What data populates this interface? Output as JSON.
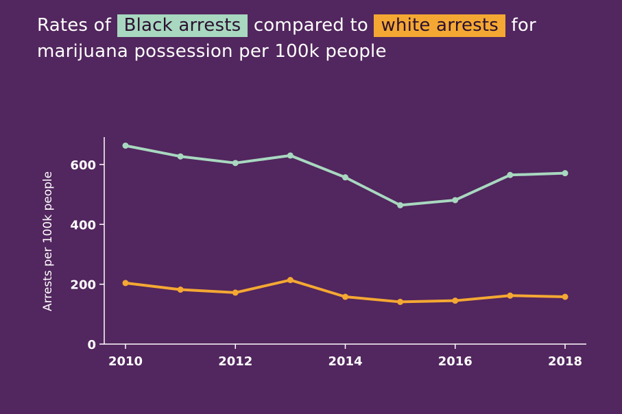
{
  "chart_data": {
    "type": "line",
    "title": {
      "prefix": "Rates of",
      "black_label": "Black arrests",
      "middle": "compared to",
      "white_label": "white arrests",
      "suffix": "for marijuana possession per 100k people"
    },
    "xlabel": "",
    "ylabel": "Arrests per 100k people",
    "x": [
      2010,
      2011,
      2012,
      2013,
      2014,
      2015,
      2016,
      2017,
      2018
    ],
    "x_ticks": [
      "2010",
      "2012",
      "2014",
      "2016",
      "2018"
    ],
    "y_ticks": [
      "0",
      "200",
      "400",
      "600"
    ],
    "xlim": [
      2010,
      2018
    ],
    "ylim": [
      0,
      690
    ],
    "grid": false,
    "series": [
      {
        "name": "Black arrests",
        "color": "#a8d8c0",
        "values": [
          663,
          627,
          605,
          630,
          557,
          464,
          481,
          565,
          571
        ]
      },
      {
        "name": "white arrests",
        "color": "#f4a833",
        "values": [
          204,
          182,
          172,
          214,
          158,
          141,
          145,
          162,
          158
        ]
      }
    ]
  }
}
